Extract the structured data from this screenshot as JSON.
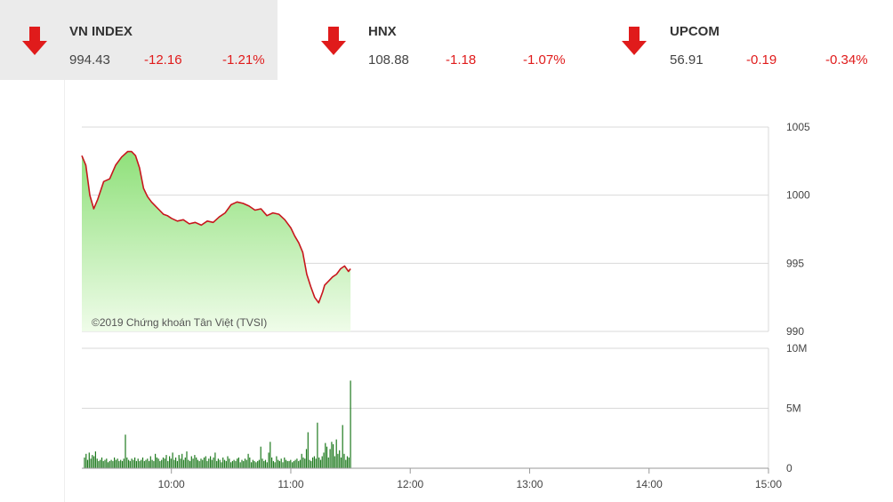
{
  "tickers": [
    {
      "name": "VN INDEX",
      "price": "994.43",
      "change": "-12.16",
      "percent": "-1.21%",
      "direction": "down-arrow-icon",
      "active": true
    },
    {
      "name": "HNX",
      "price": "108.88",
      "change": "-1.18",
      "percent": "-1.07%",
      "direction": "down-arrow-icon",
      "active": false
    },
    {
      "name": "UPCOM",
      "price": "56.91",
      "change": "-0.19",
      "percent": "-0.34%",
      "direction": "down-arrow-icon",
      "active": false
    }
  ],
  "colors": {
    "down": "#e01b1b",
    "line": "#c8161d",
    "area_top": "#8fe07a",
    "area_bottom": "#effce9",
    "volume": "#1e7a1e",
    "grid": "#d9d9d9",
    "active_bg": "#ebebeb"
  },
  "chart_data": [
    {
      "type": "area",
      "watermark": "©2019 Chứng khoán Tân Việt (TVSI)",
      "y_ticks": [
        "1005",
        "1000",
        "995",
        "990"
      ],
      "ylim": [
        990,
        1005
      ],
      "xlim": [
        "09:15",
        "15:00"
      ],
      "x_ticks": [
        "10:00",
        "11:00",
        "12:00",
        "13:00",
        "14:00",
        "15:00"
      ],
      "grid": "horizontal",
      "series": [
        {
          "x": [
            "09:15",
            "09:17",
            "09:19",
            "09:21",
            "09:23",
            "09:26",
            "09:29",
            "09:32",
            "09:35",
            "09:38",
            "09:40",
            "09:42",
            "09:44",
            "09:46",
            "09:48",
            "09:50",
            "09:52",
            "09:54",
            "09:56",
            "09:58",
            "10:00",
            "10:03",
            "10:06",
            "10:09",
            "10:12",
            "10:15",
            "10:18",
            "10:21",
            "10:24",
            "10:27",
            "10:30",
            "10:33",
            "10:36",
            "10:39",
            "10:42",
            "10:45",
            "10:48",
            "10:51",
            "10:54",
            "10:57",
            "11:00",
            "11:02",
            "11:04",
            "11:06",
            "11:08",
            "11:10",
            "11:12",
            "11:14",
            "11:16",
            "11:17",
            "11:19",
            "11:21",
            "11:23",
            "11:25",
            "11:27",
            "11:29",
            "11:30"
          ],
          "values": [
            1002.9,
            1002.2,
            1000.0,
            999.0,
            999.7,
            1001.0,
            1001.2,
            1002.2,
            1002.8,
            1003.2,
            1003.2,
            1002.9,
            1002.0,
            1000.5,
            999.9,
            999.5,
            999.2,
            998.9,
            998.6,
            998.5,
            998.3,
            998.1,
            998.2,
            997.9,
            998.0,
            997.8,
            998.1,
            998.0,
            998.4,
            998.7,
            999.3,
            999.5,
            999.4,
            999.2,
            998.9,
            999.0,
            998.5,
            998.7,
            998.6,
            998.2,
            997.6,
            997.0,
            996.5,
            995.8,
            994.2,
            993.3,
            992.5,
            992.1,
            992.9,
            993.4,
            993.7,
            994.0,
            994.2,
            994.6,
            994.8,
            994.4,
            994.6
          ]
        }
      ]
    },
    {
      "type": "bar",
      "y_ticks": [
        "10M",
        "5M",
        "0"
      ],
      "ylim": [
        0,
        10
      ],
      "ylabel_unit": "M",
      "x_ticks": [
        "10:00",
        "11:00",
        "12:00",
        "13:00",
        "14:00",
        "15:00"
      ],
      "series": [
        {
          "values": [
            0.9,
            1.2,
            0.7,
            1.3,
            0.8,
            1.1,
            1.0,
            1.4,
            0.8,
            0.6,
            0.7,
            0.9,
            0.6,
            0.7,
            0.8,
            0.5,
            0.6,
            0.7,
            0.6,
            0.9,
            0.7,
            0.8,
            0.6,
            0.7,
            0.6,
            0.8,
            2.8,
            0.9,
            0.7,
            0.6,
            0.8,
            0.7,
            0.9,
            0.6,
            0.8,
            0.6,
            0.7,
            0.9,
            0.6,
            0.7,
            0.8,
            0.6,
            1.0,
            0.7,
            0.6,
            1.2,
            0.9,
            0.8,
            0.6,
            0.7,
            0.9,
            0.8,
            1.1,
            0.6,
            1.0,
            0.8,
            1.3,
            0.7,
            0.9,
            0.6,
            1.1,
            0.8,
            1.2,
            0.7,
            0.9,
            1.4,
            0.7,
            0.6,
            1.0,
            0.8,
            1.1,
            0.9,
            0.7,
            0.6,
            0.8,
            0.7,
            0.9,
            1.0,
            0.6,
            0.8,
            1.0,
            0.7,
            0.9,
            1.3,
            0.6,
            0.8,
            0.7,
            0.5,
            0.9,
            0.7,
            0.6,
            1.0,
            0.8,
            0.5,
            0.6,
            0.7,
            0.6,
            0.8,
            0.9,
            0.5,
            0.7,
            0.6,
            0.8,
            0.7,
            1.2,
            0.9,
            0.5,
            0.7,
            0.6,
            0.5,
            0.6,
            0.7,
            1.8,
            0.8,
            0.6,
            0.7,
            0.5,
            1.3,
            2.2,
            0.9,
            0.6,
            0.5,
            1.0,
            0.7,
            0.6,
            0.8,
            0.5,
            0.9,
            0.7,
            0.6,
            0.6,
            0.7,
            0.5,
            0.6,
            0.7,
            0.8,
            0.6,
            0.7,
            1.2,
            0.9,
            0.8,
            1.6,
            3.0,
            0.7,
            0.6,
            0.9,
            1.0,
            0.8,
            3.8,
            0.9,
            0.7,
            1.0,
            1.3,
            2.1,
            1.8,
            0.9,
            1.6,
            2.2,
            2.0,
            1.0,
            2.4,
            1.2,
            1.5,
            0.9,
            3.6,
            1.2,
            0.7,
            1.0,
            0.9,
            7.3
          ]
        }
      ]
    }
  ]
}
